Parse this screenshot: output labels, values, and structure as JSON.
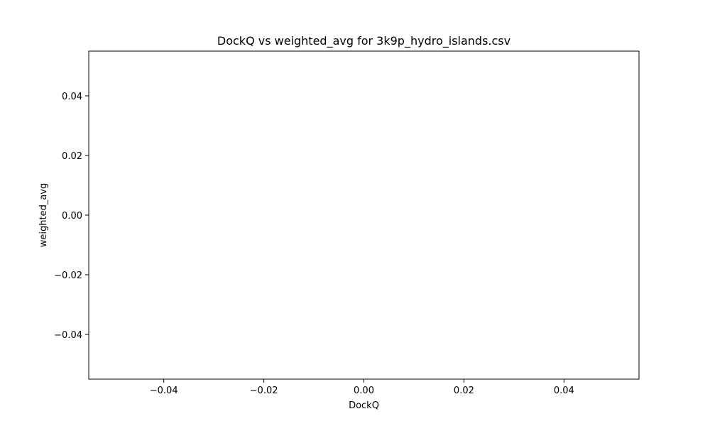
{
  "chart_data": {
    "type": "scatter",
    "title": "DockQ vs weighted_avg for 3k9p_hydro_islands.csv",
    "xlabel": "DockQ",
    "ylabel": "weighted_avg",
    "xlim": [
      -0.055,
      0.055
    ],
    "ylim": [
      -0.055,
      0.055
    ],
    "xticks": [
      -0.04,
      -0.02,
      0.0,
      0.02,
      0.04
    ],
    "yticks": [
      -0.04,
      -0.02,
      0.0,
      0.02,
      0.04
    ],
    "xtick_labels": [
      "−0.04",
      "−0.02",
      "0.00",
      "0.02",
      "0.04"
    ],
    "ytick_labels": [
      "−0.04",
      "−0.02",
      "0.00",
      "0.02",
      "0.04"
    ],
    "grid": false,
    "series": [
      {
        "x": [],
        "y": []
      }
    ]
  }
}
